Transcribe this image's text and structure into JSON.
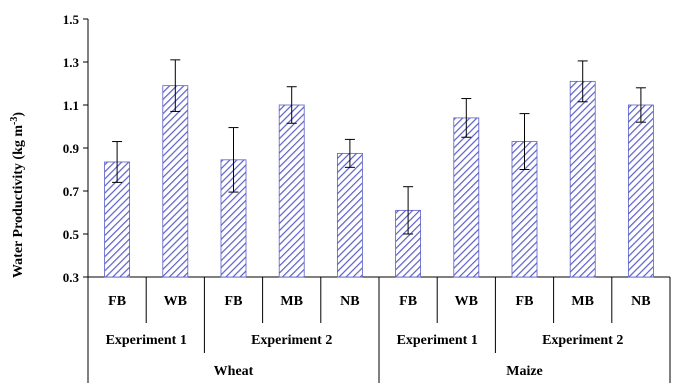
{
  "chart_data": {
    "type": "bar",
    "ylabel": "Water Productivity (kg m",
    "ylabel_sup": "-3",
    "ylabel_close": ")",
    "ylim": [
      0.3,
      1.5
    ],
    "yticks": [
      "0.3",
      "0.5",
      "0.7",
      "0.9",
      "1.1",
      "1.3",
      "1.5"
    ],
    "categories": [
      "FB",
      "WB",
      "FB",
      "MB",
      "NB",
      "FB",
      "WB",
      "FB",
      "MB",
      "NB"
    ],
    "values": [
      0.835,
      1.19,
      0.845,
      1.1,
      0.875,
      0.61,
      1.04,
      0.93,
      1.21,
      1.1
    ],
    "errors": [
      0.095,
      0.12,
      0.15,
      0.085,
      0.065,
      0.11,
      0.09,
      0.13,
      0.095,
      0.08
    ],
    "bar_color": "#5b5fc7",
    "groups": [
      {
        "label": "Experiment 1",
        "start": 0,
        "count": 2
      },
      {
        "label": "Experiment 2",
        "start": 2,
        "count": 3
      },
      {
        "label": "Experiment 1",
        "start": 5,
        "count": 2
      },
      {
        "label": "Experiment 2",
        "start": 7,
        "count": 3
      }
    ],
    "crops": [
      {
        "label": "Wheat",
        "start": 0,
        "count": 5
      },
      {
        "label": "Maize",
        "start": 5,
        "count": 5
      }
    ],
    "grid": false,
    "legend": "none"
  }
}
